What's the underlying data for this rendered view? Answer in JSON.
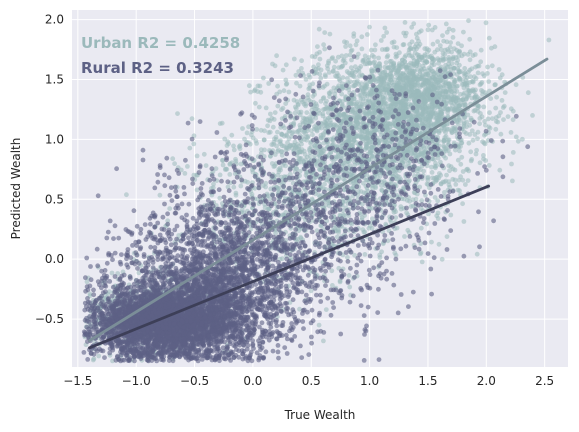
{
  "chart_data": {
    "type": "scatter",
    "xlabel": "True Wealth",
    "ylabel": "Predicted Wealth",
    "xlim": [
      -1.55,
      2.7
    ],
    "ylim": [
      -0.9,
      2.08
    ],
    "x_ticks": [
      -1.5,
      -1.0,
      -0.5,
      0.0,
      0.5,
      1.0,
      1.5,
      2.0,
      2.5
    ],
    "x_tick_labels": [
      "−1.5",
      "−1.0",
      "−0.5",
      "0.0",
      "0.5",
      "1.0",
      "1.5",
      "2.0",
      "2.5"
    ],
    "y_ticks": [
      -0.5,
      0.0,
      0.5,
      1.0,
      1.5,
      2.0
    ],
    "y_tick_labels": [
      "−0.5",
      "0.0",
      "0.5",
      "1.0",
      "1.5",
      "2.0"
    ],
    "grid": true,
    "annotations": [
      {
        "text": "Urban R2 = 0.4258",
        "color": "#9bb9bb"
      },
      {
        "text": "Rural R2 = 0.3243",
        "color": "#5d6185"
      }
    ],
    "series": [
      {
        "key": "urban",
        "color": "#9bb9bb",
        "line_color": "#7b8e98",
        "fit": {
          "x": [
            -1.4,
            2.52
          ],
          "y": [
            -0.68,
            1.67
          ]
        },
        "cloud": [
          {
            "cx": 1.05,
            "cy": 1.05,
            "sx": 0.42,
            "sy": 0.35,
            "n": 2200
          },
          {
            "cx": 1.45,
            "cy": 1.35,
            "sx": 0.3,
            "sy": 0.22,
            "n": 1200
          },
          {
            "cx": 0.3,
            "cy": 0.45,
            "sx": 0.45,
            "sy": 0.35,
            "n": 700
          },
          {
            "cx": -0.9,
            "cy": -0.45,
            "sx": 0.35,
            "sy": 0.18,
            "n": 500
          }
        ]
      },
      {
        "key": "rural",
        "color": "#5d6185",
        "line_color": "#3d3f58",
        "fit": {
          "x": [
            -1.4,
            2.02
          ],
          "y": [
            -0.74,
            0.61
          ]
        },
        "cloud": [
          {
            "cx": -0.75,
            "cy": -0.52,
            "sx": 0.35,
            "sy": 0.15,
            "n": 3200
          },
          {
            "cx": -0.35,
            "cy": -0.2,
            "sx": 0.38,
            "sy": 0.3,
            "n": 1800
          },
          {
            "cx": 0.25,
            "cy": 0.15,
            "sx": 0.5,
            "sy": 0.4,
            "n": 900
          },
          {
            "cx": 1.0,
            "cy": 0.8,
            "sx": 0.45,
            "sy": 0.35,
            "n": 450
          }
        ]
      }
    ]
  }
}
